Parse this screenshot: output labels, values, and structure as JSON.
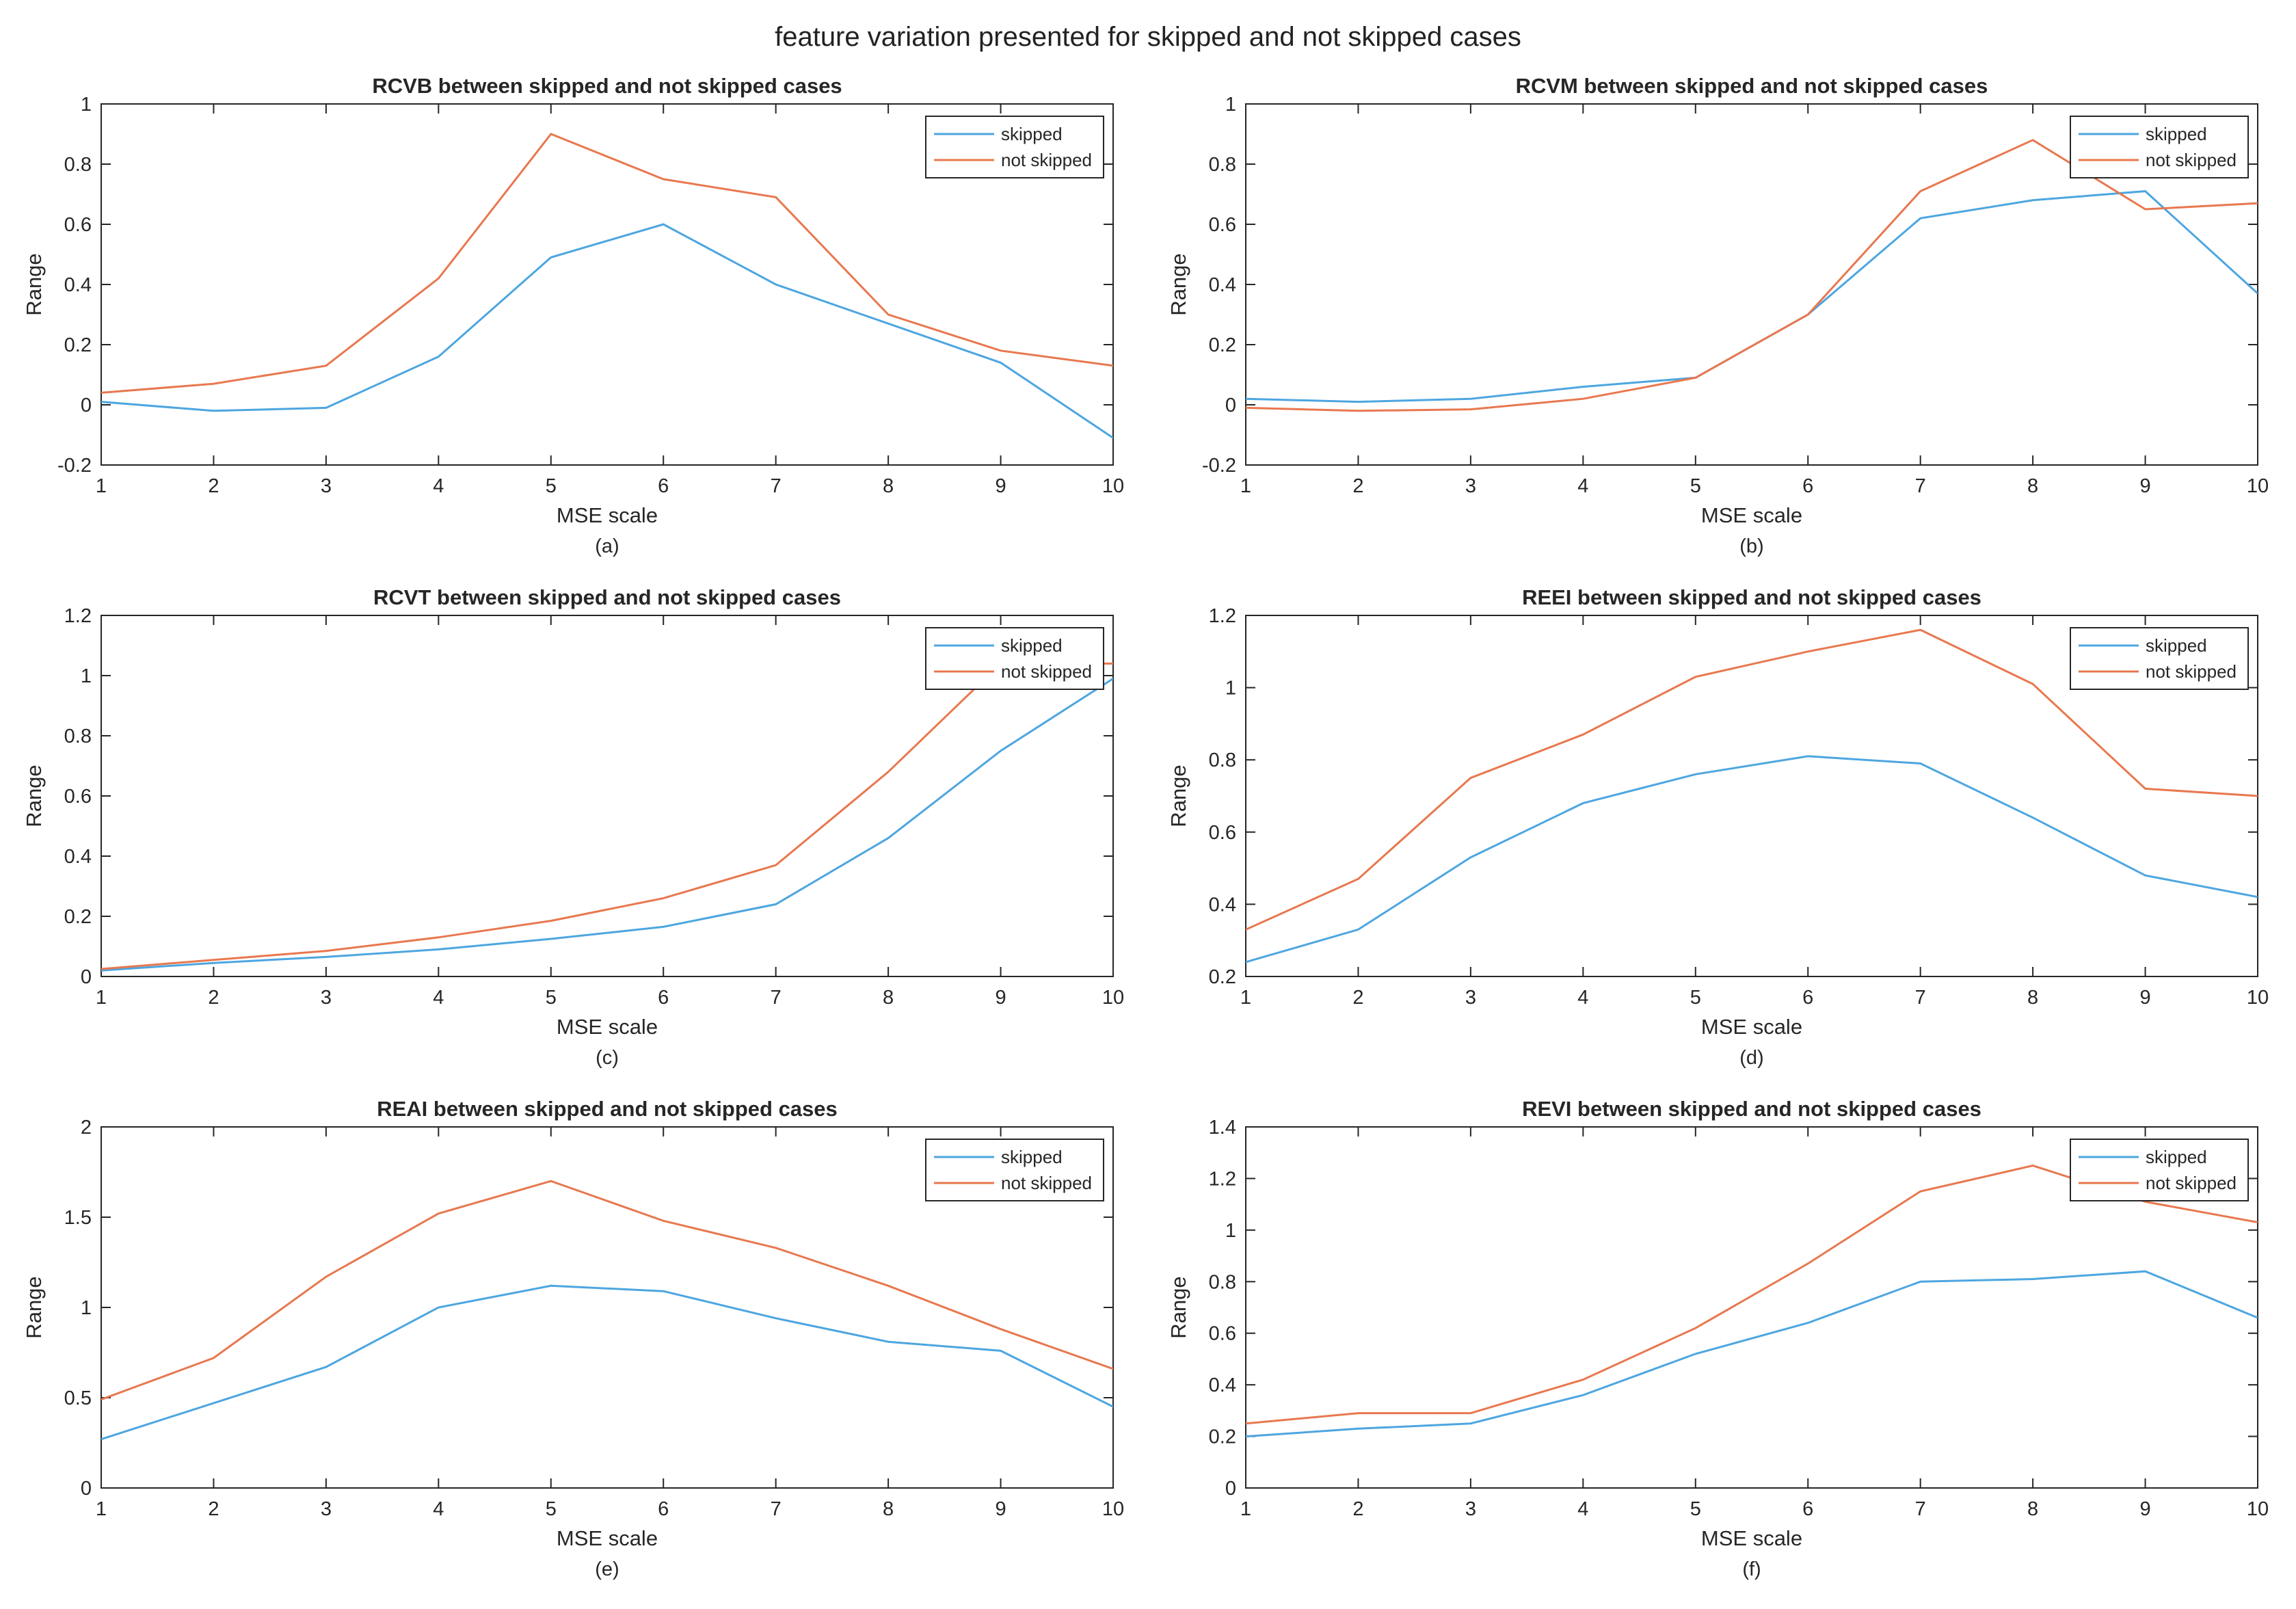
{
  "figure": {
    "suptitle": "feature variation presented for skipped and not skipped cases"
  },
  "colors": {
    "skipped": "#4DA6E0",
    "not_skipped": "#E8784F",
    "axes": "#262626",
    "text": "#262626"
  },
  "chart_data": [
    {
      "type": "line",
      "title": "RCVB between skipped and not skipped cases",
      "xlabel": "MSE scale",
      "ylabel": "Range",
      "caption": "(a)",
      "x": [
        1,
        2,
        3,
        4,
        5,
        6,
        7,
        8,
        9,
        10
      ],
      "xlim": [
        1,
        10
      ],
      "ylim": [
        -0.2,
        1
      ],
      "xticks": [
        1,
        2,
        3,
        4,
        5,
        6,
        7,
        8,
        9,
        10
      ],
      "yticks": [
        -0.2,
        0,
        0.2,
        0.4,
        0.6,
        0.8,
        1
      ],
      "legend": "top-right",
      "series": [
        {
          "name": "skipped",
          "values": [
            0.01,
            -0.02,
            -0.01,
            0.16,
            0.49,
            0.6,
            0.4,
            0.27,
            0.14,
            -0.11
          ]
        },
        {
          "name": "not skipped",
          "values": [
            0.04,
            0.07,
            0.13,
            0.42,
            0.9,
            0.75,
            0.69,
            0.3,
            0.18,
            0.13
          ]
        }
      ]
    },
    {
      "type": "line",
      "title": "RCVM between skipped and not skipped cases",
      "xlabel": "MSE scale",
      "ylabel": "Range",
      "caption": "(b)",
      "x": [
        1,
        2,
        3,
        4,
        5,
        6,
        7,
        8,
        9,
        10
      ],
      "xlim": [
        1,
        10
      ],
      "ylim": [
        -0.2,
        1
      ],
      "xticks": [
        1,
        2,
        3,
        4,
        5,
        6,
        7,
        8,
        9,
        10
      ],
      "yticks": [
        -0.2,
        0,
        0.2,
        0.4,
        0.6,
        0.8,
        1
      ],
      "legend": "top-right",
      "series": [
        {
          "name": "skipped",
          "values": [
            0.02,
            0.01,
            0.02,
            0.06,
            0.09,
            0.3,
            0.62,
            0.68,
            0.71,
            0.37
          ]
        },
        {
          "name": "not skipped",
          "values": [
            -0.01,
            -0.02,
            -0.015,
            0.02,
            0.09,
            0.3,
            0.71,
            0.88,
            0.65,
            0.67
          ]
        }
      ]
    },
    {
      "type": "line",
      "title": "RCVT between skipped and not skipped cases",
      "xlabel": "MSE scale",
      "ylabel": "Range",
      "caption": "(c)",
      "x": [
        1,
        2,
        3,
        4,
        5,
        6,
        7,
        8,
        9,
        10
      ],
      "xlim": [
        1,
        10
      ],
      "ylim": [
        0,
        1.2
      ],
      "xticks": [
        1,
        2,
        3,
        4,
        5,
        6,
        7,
        8,
        9,
        10
      ],
      "yticks": [
        0,
        0.2,
        0.4,
        0.6,
        0.8,
        1,
        1.2
      ],
      "legend": "top-right",
      "series": [
        {
          "name": "skipped",
          "values": [
            0.02,
            0.045,
            0.065,
            0.09,
            0.125,
            0.165,
            0.24,
            0.46,
            0.75,
            0.99
          ]
        },
        {
          "name": "not skipped",
          "values": [
            0.025,
            0.055,
            0.085,
            0.13,
            0.185,
            0.26,
            0.37,
            0.68,
            1.04,
            1.04
          ]
        }
      ]
    },
    {
      "type": "line",
      "title": "REEI between skipped and not skipped cases",
      "xlabel": "MSE scale",
      "ylabel": "Range",
      "caption": "(d)",
      "x": [
        1,
        2,
        3,
        4,
        5,
        6,
        7,
        8,
        9,
        10
      ],
      "xlim": [
        1,
        10
      ],
      "ylim": [
        0.2,
        1.2
      ],
      "xticks": [
        1,
        2,
        3,
        4,
        5,
        6,
        7,
        8,
        9,
        10
      ],
      "yticks": [
        0.2,
        0.4,
        0.6,
        0.8,
        1,
        1.2
      ],
      "legend": "top-right",
      "series": [
        {
          "name": "skipped",
          "values": [
            0.24,
            0.33,
            0.53,
            0.68,
            0.76,
            0.81,
            0.79,
            0.64,
            0.48,
            0.42
          ]
        },
        {
          "name": "not skipped",
          "values": [
            0.33,
            0.47,
            0.75,
            0.87,
            1.03,
            1.1,
            1.16,
            1.01,
            0.72,
            0.7
          ]
        }
      ]
    },
    {
      "type": "line",
      "title": "REAI between skipped and not skipped cases",
      "xlabel": "MSE scale",
      "ylabel": "Range",
      "caption": "(e)",
      "x": [
        1,
        2,
        3,
        4,
        5,
        6,
        7,
        8,
        9,
        10
      ],
      "xlim": [
        1,
        10
      ],
      "ylim": [
        0,
        2
      ],
      "xticks": [
        1,
        2,
        3,
        4,
        5,
        6,
        7,
        8,
        9,
        10
      ],
      "yticks": [
        0,
        0.5,
        1,
        1.5,
        2
      ],
      "legend": "top-right",
      "series": [
        {
          "name": "skipped",
          "values": [
            0.27,
            0.47,
            0.67,
            1.0,
            1.12,
            1.09,
            0.94,
            0.81,
            0.76,
            0.45
          ]
        },
        {
          "name": "not skipped",
          "values": [
            0.49,
            0.72,
            1.17,
            1.52,
            1.7,
            1.48,
            1.33,
            1.12,
            0.88,
            0.66
          ]
        }
      ]
    },
    {
      "type": "line",
      "title": "REVI between skipped and not skipped cases",
      "xlabel": "MSE scale",
      "ylabel": "Range",
      "caption": "(f)",
      "x": [
        1,
        2,
        3,
        4,
        5,
        6,
        7,
        8,
        9,
        10
      ],
      "xlim": [
        1,
        10
      ],
      "ylim": [
        0,
        1.4
      ],
      "xticks": [
        1,
        2,
        3,
        4,
        5,
        6,
        7,
        8,
        9,
        10
      ],
      "yticks": [
        0,
        0.2,
        0.4,
        0.6,
        0.8,
        1,
        1.2,
        1.4
      ],
      "legend": "top-right",
      "series": [
        {
          "name": "skipped",
          "values": [
            0.2,
            0.23,
            0.25,
            0.36,
            0.52,
            0.64,
            0.8,
            0.81,
            0.84,
            0.66
          ]
        },
        {
          "name": "not skipped",
          "values": [
            0.25,
            0.29,
            0.29,
            0.42,
            0.62,
            0.87,
            1.15,
            1.25,
            1.11,
            1.03
          ]
        }
      ]
    }
  ]
}
